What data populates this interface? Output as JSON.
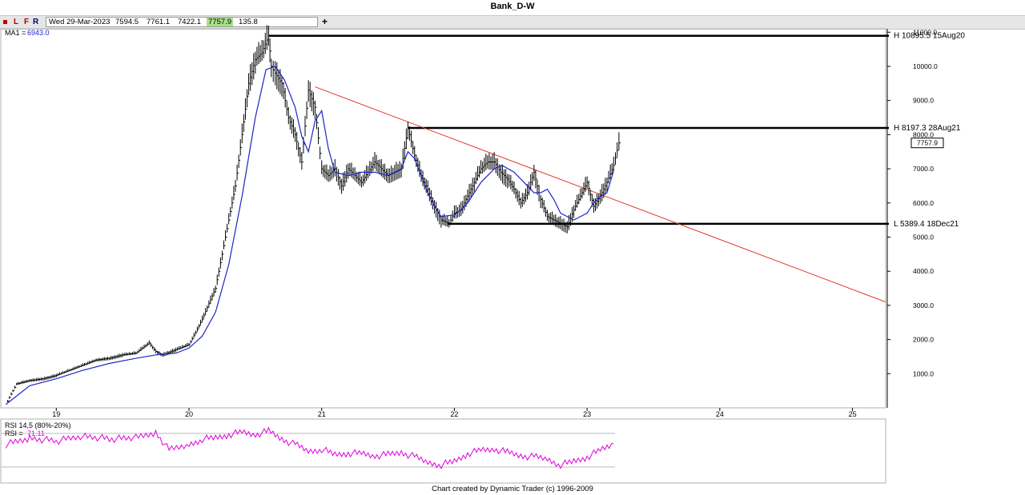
{
  "title": "Bank_D-W",
  "toolbar": {
    "buttons": [
      "L",
      "F",
      "R"
    ],
    "date": "Wed 29-Mar-2023",
    "open": "7594.5",
    "high": "7761.1",
    "low": "7422.1",
    "close": "7757.9",
    "change": "135.8",
    "add_symbol": "+"
  },
  "ma_label": {
    "name": "MA1 =",
    "value": "6943.0"
  },
  "rsi_labels": {
    "params": "RSI 14,5 (80%-20%)",
    "name": "RSI =",
    "value": "71.11"
  },
  "footer": "Chart created by Dynamic Trader  (c) 1996-2009",
  "colors": {
    "price": "#000000",
    "ma": "#1f24c8",
    "trendline": "#e23a2a",
    "rsi": "#e000e0",
    "axis_text": "#000000",
    "ma_value": "#1f24c8"
  },
  "annotations": [
    {
      "label": "H 10895.5 15Aug20",
      "price": 10895.5
    },
    {
      "label": "H 8197.3 28Aug21",
      "price": 8197.3
    },
    {
      "label": "L 5389.4 18Dec21",
      "price": 5389.4
    }
  ],
  "last_price_tag": "7757.9",
  "chart_data": {
    "type": "line",
    "title": "Bank_D-W",
    "x_ticks": [
      "19",
      "20",
      "21",
      "22",
      "23",
      "24",
      "25"
    ],
    "x_tick_years": [
      2019,
      2020,
      2021,
      2022,
      2023,
      2024,
      2025
    ],
    "y_ticks": [
      "1000.0",
      "2000.0",
      "3000.0",
      "4000.0",
      "5000.0",
      "6000.0",
      "7000.0",
      "8000.0",
      "9000.0",
      "10000.0",
      "11000.0"
    ],
    "ylim": [
      0,
      11100
    ],
    "xlim": [
      2018.6,
      2025.25
    ],
    "series": [
      {
        "name": "Price",
        "style": "ohlc-bars",
        "x": [
          2018.62,
          2018.7,
          2018.8,
          2018.9,
          2019.0,
          2019.1,
          2019.2,
          2019.3,
          2019.4,
          2019.5,
          2019.6,
          2019.7,
          2019.75,
          2019.8,
          2019.9,
          2020.0,
          2020.05,
          2020.1,
          2020.2,
          2020.25,
          2020.3,
          2020.35,
          2020.4,
          2020.45,
          2020.5,
          2020.55,
          2020.6,
          2020.62,
          2020.65,
          2020.7,
          2020.75,
          2020.8,
          2020.85,
          2020.9,
          2020.95,
          2021.0,
          2021.05,
          2021.1,
          2021.15,
          2021.2,
          2021.3,
          2021.4,
          2021.5,
          2021.6,
          2021.65,
          2021.7,
          2021.75,
          2021.8,
          2021.85,
          2021.9,
          2021.96,
          2022.0,
          2022.05,
          2022.1,
          2022.15,
          2022.2,
          2022.25,
          2022.3,
          2022.35,
          2022.4,
          2022.45,
          2022.5,
          2022.55,
          2022.6,
          2022.65,
          2022.7,
          2022.75,
          2022.8,
          2022.85,
          2022.9,
          2022.95,
          2023.0,
          2023.05,
          2023.1,
          2023.15,
          2023.2,
          2023.24
        ],
        "values": [
          100,
          700,
          800,
          850,
          950,
          1100,
          1250,
          1400,
          1450,
          1550,
          1600,
          1900,
          1650,
          1550,
          1700,
          1850,
          2200,
          2600,
          3500,
          4500,
          5500,
          6500,
          8000,
          9500,
          10200,
          10400,
          10895,
          10000,
          9800,
          9500,
          8500,
          8000,
          7200,
          9300,
          8800,
          7000,
          6800,
          7000,
          6500,
          7000,
          6600,
          7200,
          6800,
          7000,
          8197,
          7400,
          6800,
          6400,
          5900,
          5500,
          5400,
          5700,
          5800,
          6200,
          6600,
          7000,
          7200,
          7200,
          6900,
          6700,
          6400,
          6000,
          6300,
          6900,
          6100,
          5600,
          5500,
          5400,
          5300,
          5800,
          6200,
          6600,
          5900,
          6200,
          6600,
          7100,
          7757.9
        ]
      },
      {
        "name": "MA1",
        "x": [
          2018.62,
          2018.8,
          2019.0,
          2019.2,
          2019.4,
          2019.6,
          2019.75,
          2019.9,
          2020.0,
          2020.1,
          2020.2,
          2020.3,
          2020.4,
          2020.5,
          2020.58,
          2020.65,
          2020.72,
          2020.8,
          2020.85,
          2020.9,
          2020.95,
          2021.0,
          2021.05,
          2021.1,
          2021.2,
          2021.3,
          2021.4,
          2021.5,
          2021.6,
          2021.65,
          2021.7,
          2021.75,
          2021.8,
          2021.85,
          2021.9,
          2022.0,
          2022.05,
          2022.1,
          2022.2,
          2022.3,
          2022.36,
          2022.45,
          2022.55,
          2022.6,
          2022.65,
          2022.7,
          2022.75,
          2022.8,
          2022.9,
          2023.0,
          2023.05,
          2023.1,
          2023.15,
          2023.2
        ],
        "values": [
          100,
          650,
          850,
          1100,
          1300,
          1450,
          1550,
          1600,
          1750,
          2100,
          2800,
          4200,
          6200,
          8500,
          9900,
          10000,
          9600,
          8800,
          7950,
          7500,
          8400,
          8700,
          7600,
          6900,
          6800,
          6900,
          6900,
          6800,
          7000,
          7500,
          7300,
          6800,
          6300,
          5900,
          5600,
          5650,
          5800,
          6000,
          6600,
          7000,
          7100,
          6900,
          6500,
          6300,
          6300,
          6400,
          6100,
          5700,
          5500,
          5700,
          6000,
          6200,
          6300,
          6943
        ]
      },
      {
        "name": "Trendline",
        "x": [
          2020.95,
          2025.25
        ],
        "values": [
          9400,
          3100
        ]
      }
    ],
    "horizontal_lines": [
      {
        "value": 10895.5,
        "from": 2020.6,
        "to": 2025.25
      },
      {
        "value": 8197.3,
        "from": 2021.65,
        "to": 2025.25
      },
      {
        "value": 5389.4,
        "from": 2021.95,
        "to": 2025.25
      }
    ],
    "rsi": {
      "name": "RSI",
      "params": "14,5",
      "levels": [
        80,
        20
      ],
      "last": 71.11,
      "x": [
        2018.62,
        2018.8,
        2019.0,
        2019.2,
        2019.4,
        2019.6,
        2019.75,
        2019.85,
        2020.0,
        2020.1,
        2020.2,
        2020.3,
        2020.4,
        2020.5,
        2020.6,
        2020.7,
        2020.8,
        2020.9,
        2021.0,
        2021.1,
        2021.2,
        2021.3,
        2021.4,
        2021.5,
        2021.6,
        2021.7,
        2021.8,
        2021.9,
        2022.0,
        2022.1,
        2022.2,
        2022.3,
        2022.4,
        2022.5,
        2022.6,
        2022.7,
        2022.8,
        2022.9,
        2023.0,
        2023.1,
        2023.2
      ],
      "values": [
        60,
        72,
        66,
        76,
        70,
        72,
        82,
        50,
        60,
        70,
        72,
        78,
        82,
        78,
        84,
        70,
        60,
        48,
        52,
        42,
        45,
        44,
        40,
        42,
        46,
        38,
        28,
        24,
        30,
        44,
        50,
        52,
        46,
        40,
        38,
        34,
        24,
        30,
        38,
        50,
        62
      ]
    }
  }
}
